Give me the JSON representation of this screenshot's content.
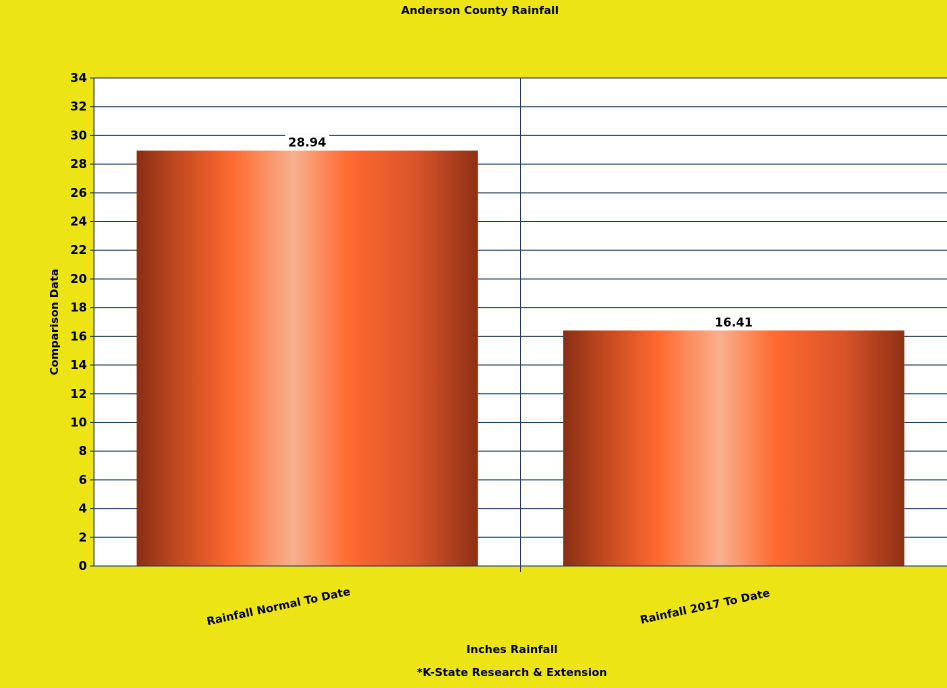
{
  "chart_data": {
    "type": "bar",
    "title": "Anderson County Rainfall",
    "categories": [
      "Rainfall Normal To Date",
      "Rainfall 2017 To Date"
    ],
    "values": [
      28.94,
      16.41
    ],
    "value_labels": [
      "28.94",
      "16.41"
    ],
    "xlabel": "Inches Rainfall",
    "ylabel": "Comparison Data",
    "footnote": "*K-State Research & Extension",
    "ylim": [
      0,
      34
    ],
    "ytick_step": 2,
    "grid": true,
    "legend": "none",
    "colors": {
      "background": "#ede415",
      "plot_area": "#ffffff",
      "gridline": "#1f3a5f",
      "bar_dark": "#8a2e14",
      "bar_mid": "#ff6a30",
      "bar_light": "#f7b08e"
    }
  }
}
